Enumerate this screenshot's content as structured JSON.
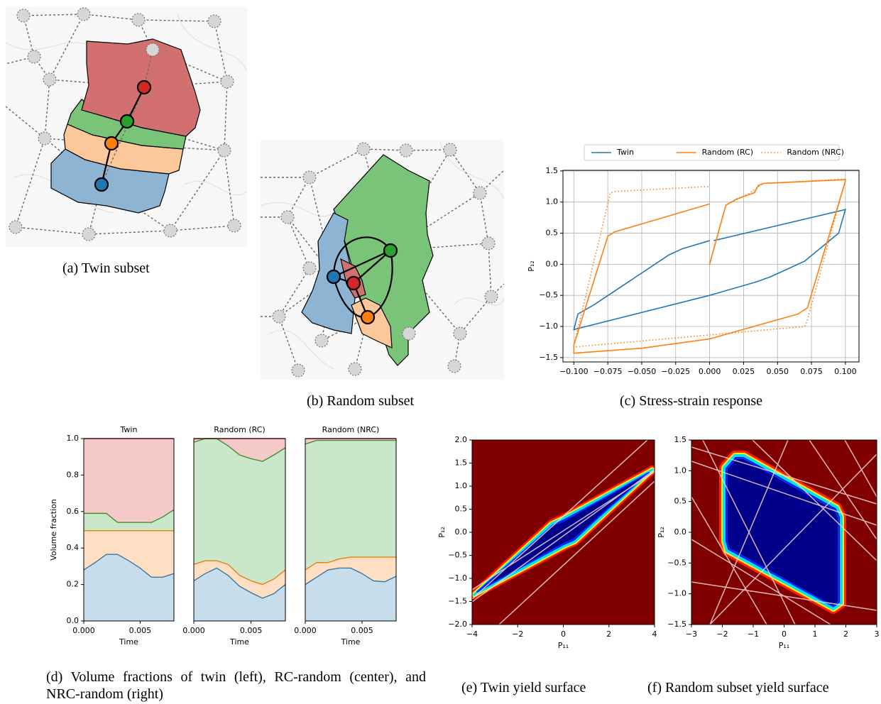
{
  "figure": {
    "captions": [
      "(a) Twin subset",
      "(b) Random subset",
      "(c) Stress-strain response",
      "(d) Volume fractions of twin (left), RC-random (center), and NRC-random (right)",
      "(e) Twin yield surface",
      "(f) Random subset yield surface"
    ]
  },
  "chart_data": [
    {
      "type": "line",
      "ylabel": "P₁₂",
      "grid": true,
      "legend": "top",
      "xlim": [
        -0.108,
        0.11
      ],
      "ylim": [
        -1.57,
        1.51
      ],
      "xticks": [
        {
          "value": -0.1,
          "label": "−0.100"
        },
        {
          "value": -0.075,
          "label": "−0.075"
        },
        {
          "value": -0.05,
          "label": "−0.050"
        },
        {
          "value": -0.025,
          "label": "−0.025"
        },
        {
          "value": 0,
          "label": "0.000"
        },
        {
          "value": 0.025,
          "label": "0.025"
        },
        {
          "value": 0.05,
          "label": "0.050"
        },
        {
          "value": 0.075,
          "label": "0.075"
        },
        {
          "value": 0.1,
          "label": "0.100"
        }
      ],
      "yticks": [
        {
          "value": -1.5,
          "label": "−1.5"
        },
        {
          "value": -1,
          "label": "−1.0"
        },
        {
          "value": -0.5,
          "label": "−0.5"
        },
        {
          "value": 0,
          "label": "0.0"
        },
        0.5,
        {
          "value": 1,
          "label": "1.0"
        },
        1.5
      ],
      "series": [
        {
          "name": "Twin",
          "color": "#1f77b4",
          "dash": "solid",
          "x": [
            0.003,
            0.1,
            0.095,
            0.07,
            0.045,
            0.035,
            0,
            -0.1,
            -0.097,
            -0.085,
            -0.03,
            -0.02,
            0
          ],
          "values": [
            0.38,
            0.88,
            0.5,
            0.05,
            -0.2,
            -0.28,
            -0.5,
            -1.05,
            -0.8,
            -0.65,
            0.15,
            0.25,
            0.38
          ]
        },
        {
          "name": "Random (RC)",
          "color": "#ff7f0e",
          "dash": "solid",
          "x": [
            0,
            0.005,
            0.012,
            0.02,
            0.033,
            0.036,
            0.04,
            0.1,
            0.1,
            0.072,
            0.065,
            0,
            -0.05,
            -0.1,
            -0.1,
            -0.075,
            -0.07,
            0
          ],
          "values": [
            0,
            0.4,
            0.95,
            1.05,
            1.15,
            1.27,
            1.3,
            1.36,
            1.34,
            -0.7,
            -0.8,
            -1.2,
            -1.35,
            -1.43,
            -1.3,
            0.45,
            0.52,
            0.97
          ]
        },
        {
          "name": "Random (NRC)",
          "color": "#ff7f0e",
          "dash": "dotted",
          "x": [
            0,
            0.012,
            0.03,
            0.036,
            0.04,
            0.1,
            0.1,
            0.072,
            0.07,
            -0.1,
            -0.1,
            -0.073,
            -0.07,
            0
          ],
          "values": [
            0,
            0.95,
            1.15,
            1.25,
            1.3,
            1.37,
            1.35,
            -0.9,
            -1.0,
            -1.33,
            -1.3,
            1.15,
            1.17,
            1.25
          ]
        }
      ]
    },
    {
      "type": "area",
      "stacked": true,
      "title": "Twin",
      "xlabel": "Time",
      "ylabel": "Volume fraction",
      "xlim": [
        0,
        0.008
      ],
      "ylim": [
        0,
        1
      ],
      "xticks": [
        {
          "value": 0,
          "label": "0.000"
        },
        {
          "value": 0.005,
          "label": "0.005"
        }
      ],
      "yticks": [
        {
          "value": 0,
          "label": "0.0"
        },
        {
          "value": 0.2,
          "label": "0.2"
        },
        {
          "value": 0.4,
          "label": "0.4"
        },
        {
          "value": 0.6,
          "label": "0.6"
        },
        {
          "value": 0.8,
          "label": "0.8"
        },
        {
          "value": 1,
          "label": "1.0"
        }
      ],
      "x": [
        0,
        0.001,
        0.002,
        0.003,
        0.004,
        0.005,
        0.006,
        0.007,
        0.008
      ],
      "series": [
        {
          "color": "#1f77b4",
          "values": [
            0.28,
            0.32,
            0.365,
            0.365,
            0.33,
            0.29,
            0.24,
            0.24,
            0.26
          ]
        },
        {
          "color": "#ff7f0e",
          "values": [
            0.215,
            0.175,
            0.13,
            0.13,
            0.165,
            0.205,
            0.255,
            0.255,
            0.235
          ]
        },
        {
          "color": "#2ca02c",
          "values": [
            0.095,
            0.095,
            0.095,
            0.045,
            0.045,
            0.045,
            0.045,
            0.075,
            0.115
          ]
        },
        {
          "color": "#d62728",
          "values": [
            0.41,
            0.41,
            0.41,
            0.46,
            0.46,
            0.46,
            0.46,
            0.43,
            0.39
          ]
        }
      ]
    },
    {
      "type": "area",
      "stacked": true,
      "title": "Random (RC)",
      "xlabel": "Time",
      "xlim": [
        0,
        0.008
      ],
      "ylim": [
        0,
        1
      ],
      "xticks": [
        {
          "value": 0,
          "label": "0.000"
        },
        {
          "value": 0.005,
          "label": "0.005"
        }
      ],
      "x": [
        0,
        0.001,
        0.002,
        0.003,
        0.004,
        0.005,
        0.006,
        0.007,
        0.008
      ],
      "series": [
        {
          "color": "#1f77b4",
          "values": [
            0.22,
            0.26,
            0.29,
            0.25,
            0.19,
            0.155,
            0.125,
            0.15,
            0.2
          ]
        },
        {
          "color": "#ff7f0e",
          "values": [
            0.09,
            0.07,
            0.04,
            0.06,
            0.06,
            0.065,
            0.075,
            0.08,
            0.08
          ]
        },
        {
          "color": "#2ca02c",
          "values": [
            0.67,
            0.67,
            0.67,
            0.65,
            0.66,
            0.67,
            0.675,
            0.68,
            0.67
          ]
        },
        {
          "color": "#d62728",
          "values": [
            0.02,
            0,
            0,
            0.04,
            0.09,
            0.11,
            0.125,
            0.09,
            0.05
          ]
        }
      ]
    },
    {
      "type": "area",
      "stacked": true,
      "title": "Random (NRC)",
      "xlabel": "Time",
      "xlim": [
        0,
        0.008
      ],
      "ylim": [
        0,
        1
      ],
      "xticks": [
        {
          "value": 0,
          "label": "0.000"
        },
        {
          "value": 0.005,
          "label": "0.005"
        }
      ],
      "x": [
        0,
        0.001,
        0.002,
        0.003,
        0.004,
        0.005,
        0.006,
        0.007,
        0.008
      ],
      "series": [
        {
          "color": "#1f77b4",
          "values": [
            0.2,
            0.24,
            0.28,
            0.29,
            0.29,
            0.26,
            0.22,
            0.215,
            0.245
          ]
        },
        {
          "color": "#ff7f0e",
          "values": [
            0.08,
            0.08,
            0.04,
            0.05,
            0.06,
            0.09,
            0.13,
            0.135,
            0.105
          ]
        },
        {
          "color": "#2ca02c",
          "values": [
            0.69,
            0.67,
            0.67,
            0.65,
            0.64,
            0.64,
            0.64,
            0.64,
            0.64
          ]
        },
        {
          "color": "#d62728",
          "values": [
            0.03,
            0.01,
            0.01,
            0.01,
            0.01,
            0.01,
            0.01,
            0.01,
            0.01
          ]
        }
      ]
    },
    {
      "type": "heatmap",
      "xlabel": "P₁₁",
      "ylabel": "P₁₂",
      "xlim": [
        -4,
        4
      ],
      "ylim": [
        -2,
        2
      ],
      "xticks": [
        {
          "value": -4,
          "label": "−4"
        },
        {
          "value": -2,
          "label": "−2"
        },
        0,
        2,
        4
      ],
      "yticks": [
        {
          "value": -2,
          "label": "−2.0"
        },
        {
          "value": -1.5,
          "label": "−1.5"
        },
        {
          "value": -1,
          "label": "−1.0"
        },
        {
          "value": -0.5,
          "label": "−0.5"
        },
        {
          "value": 0,
          "label": "0.0"
        },
        0.5,
        {
          "value": 1,
          "label": "1.0"
        },
        1.5,
        {
          "value": 2,
          "label": "2.0"
        }
      ]
    },
    {
      "type": "heatmap",
      "xlabel": "P₁₁",
      "ylabel": "P₁₂",
      "xlim": [
        -3,
        3
      ],
      "ylim": [
        -1.5,
        1.5
      ],
      "xticks": [
        {
          "value": -3,
          "label": "−3"
        },
        {
          "value": -2,
          "label": "−2"
        },
        {
          "value": -1,
          "label": "−1"
        },
        0,
        1,
        2,
        3
      ],
      "yticks": [
        {
          "value": -1.5,
          "label": "−1.5"
        },
        {
          "value": -1,
          "label": "−1.0"
        },
        {
          "value": -0.5,
          "label": "−0.5"
        },
        {
          "value": 0,
          "label": "0.0"
        },
        0.5,
        {
          "value": 1,
          "label": "1.0"
        },
        1.5
      ]
    }
  ]
}
